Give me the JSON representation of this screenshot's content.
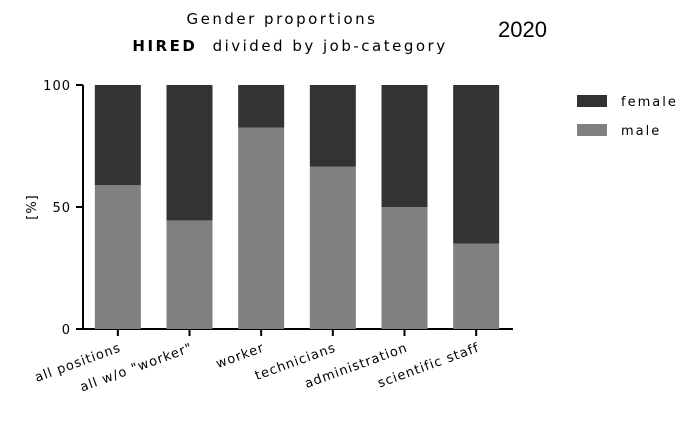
{
  "chart_data": {
    "type": "bar",
    "stacked": true,
    "title": "Gender proportions",
    "subtitle_bold": "HIRED",
    "subtitle_rest": "divided by job-category",
    "year": "2020",
    "ylabel": "[%]",
    "ylim": [
      0,
      100
    ],
    "yticks": [
      "0",
      "50",
      "100"
    ],
    "categories": [
      "all positions",
      "all w/o \"worker\"",
      "worker",
      "technicians",
      "administration",
      "scientific staff"
    ],
    "series": [
      {
        "name": "male",
        "color": "#808080",
        "values": [
          59,
          44.5,
          82.5,
          66.5,
          50,
          35
        ]
      },
      {
        "name": "female",
        "color": "#333333",
        "values": [
          41,
          55.5,
          17.5,
          33.5,
          50,
          65
        ]
      }
    ],
    "legend": {
      "placement": "top-right",
      "order": [
        "female",
        "male"
      ]
    },
    "grid": false
  }
}
